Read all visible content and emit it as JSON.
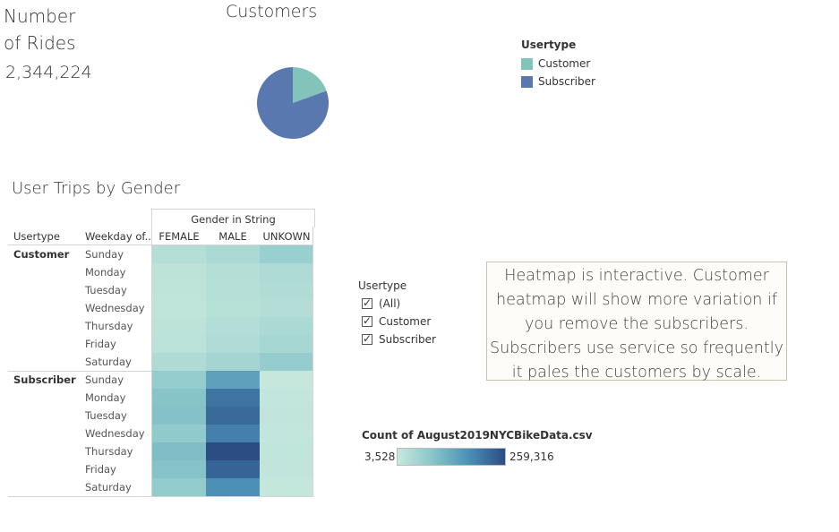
{
  "kpi": {
    "title_line1": "Number",
    "title_line2": "of Rides",
    "value": "2,344,224"
  },
  "pie": {
    "title": "Customers",
    "legend_title": "Usertype",
    "legend": [
      {
        "label": "Customer",
        "color": "#82c4b9"
      },
      {
        "label": "Subscriber",
        "color": "#5a78b0"
      }
    ]
  },
  "heatmap": {
    "title": "User Trips by Gender",
    "column_group_title": "Gender in String",
    "row_header_usertype": "Usertype",
    "row_header_weekday": "Weekday of..",
    "filter": {
      "title": "Usertype",
      "options": [
        {
          "label": "(All)",
          "checked": true
        },
        {
          "label": "Customer",
          "checked": true
        },
        {
          "label": "Subscriber",
          "checked": true
        }
      ]
    },
    "color_legend": {
      "title": "Count of August2019NYCBikeData.csv",
      "min": "3,528",
      "max": "259,316",
      "low_color": "#c6e8dc",
      "high_color": "#2b4d84"
    }
  },
  "note": {
    "lines": [
      "Heatmap is interactive. Customer",
      "heatmap will show more variation if",
      "you remove the subscribers.",
      "Subscribers use service so frequently",
      "it pales the customers by scale."
    ]
  },
  "chart_data": [
    {
      "type": "pie",
      "title": "Customers",
      "legend_title": "Usertype",
      "categories": [
        "Customer",
        "Subscriber"
      ],
      "values": [
        19.5,
        80.5
      ],
      "colors": [
        "#82c4b9",
        "#5a78b0"
      ]
    },
    {
      "type": "heatmap",
      "title": "User Trips by Gender",
      "x_group_label": "Gender in String",
      "columns": [
        "FEMALE",
        "MALE",
        "UNKOWN"
      ],
      "rows": [
        {
          "usertype": "Customer",
          "weekday": "Sunday",
          "values": [
            14000,
            22000,
            40000
          ]
        },
        {
          "usertype": "Customer",
          "weekday": "Monday",
          "values": [
            8000,
            14000,
            20000
          ]
        },
        {
          "usertype": "Customer",
          "weekday": "Tuesday",
          "values": [
            7000,
            13000,
            17000
          ]
        },
        {
          "usertype": "Customer",
          "weekday": "Wednesday",
          "values": [
            6500,
            12000,
            15000
          ]
        },
        {
          "usertype": "Customer",
          "weekday": "Thursday",
          "values": [
            8000,
            15000,
            22000
          ]
        },
        {
          "usertype": "Customer",
          "weekday": "Friday",
          "values": [
            9500,
            17000,
            26000
          ]
        },
        {
          "usertype": "Customer",
          "weekday": "Saturday",
          "values": [
            18000,
            28000,
            45000
          ]
        },
        {
          "usertype": "Subscriber",
          "weekday": "Sunday",
          "values": [
            45000,
            120000,
            3528
          ]
        },
        {
          "usertype": "Subscriber",
          "weekday": "Monday",
          "values": [
            62000,
            195000,
            5000
          ]
        },
        {
          "usertype": "Subscriber",
          "weekday": "Tuesday",
          "values": [
            65000,
            210000,
            5500
          ]
        },
        {
          "usertype": "Subscriber",
          "weekday": "Wednesday",
          "values": [
            50000,
            175000,
            5000
          ]
        },
        {
          "usertype": "Subscriber",
          "weekday": "Thursday",
          "values": [
            72000,
            259316,
            6000
          ]
        },
        {
          "usertype": "Subscriber",
          "weekday": "Friday",
          "values": [
            64000,
            220000,
            5500
          ]
        },
        {
          "usertype": "Subscriber",
          "weekday": "Saturday",
          "values": [
            48000,
            150000,
            4000
          ]
        }
      ],
      "color_min": 3528,
      "color_max": 259316
    }
  ]
}
